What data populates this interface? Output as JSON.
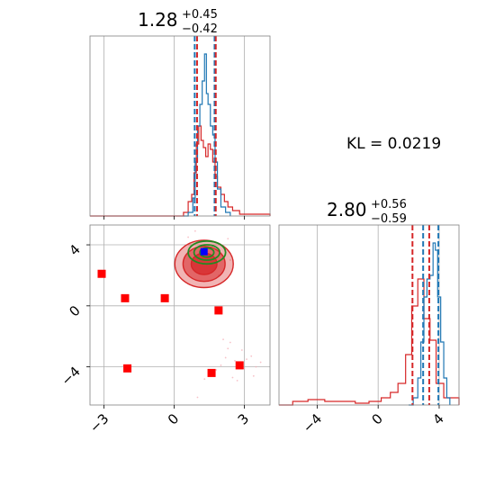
{
  "chart_data": {
    "type": "corner",
    "colors": {
      "hist1": "#1f77b4",
      "hist2": "#d62728",
      "scatter": "#ff0000",
      "marker": "#0000ff",
      "contour_green": "#228b22",
      "grid": "#b0b0b0"
    },
    "annotation": "KL = 0.0219",
    "param1": {
      "title_main": "1.28",
      "title_sup": "+0.45",
      "title_sub": "−0.42",
      "range": [
        -3.6,
        4.1
      ],
      "ticks": [
        -3,
        0,
        3
      ],
      "tick_labels": [
        "−3",
        "0",
        "3"
      ],
      "quantiles_blue": [
        0.88,
        1.73
      ],
      "quantiles_red": [
        0.98,
        1.78
      ],
      "hist_blue": [
        [
          0.4,
          0
        ],
        [
          0.6,
          0.02
        ],
        [
          0.8,
          0.1
        ],
        [
          0.9,
          0.3
        ],
        [
          1.0,
          0.5
        ],
        [
          1.1,
          0.62
        ],
        [
          1.2,
          0.75
        ],
        [
          1.3,
          0.9
        ],
        [
          1.38,
          0.68
        ],
        [
          1.45,
          0.62
        ],
        [
          1.55,
          0.5
        ],
        [
          1.65,
          0.45
        ],
        [
          1.75,
          0.3
        ],
        [
          1.85,
          0.15
        ],
        [
          2.0,
          0.05
        ],
        [
          2.2,
          0.02
        ],
        [
          2.4,
          0
        ]
      ],
      "hist_red": [
        [
          -3.6,
          0
        ],
        [
          0.2,
          0
        ],
        [
          0.4,
          0.02
        ],
        [
          0.6,
          0.08
        ],
        [
          0.75,
          0.12
        ],
        [
          0.85,
          0.24
        ],
        [
          0.95,
          0.4
        ],
        [
          1.05,
          0.5
        ],
        [
          1.15,
          0.42
        ],
        [
          1.25,
          0.38
        ],
        [
          1.35,
          0.33
        ],
        [
          1.45,
          0.4
        ],
        [
          1.55,
          0.37
        ],
        [
          1.65,
          0.3
        ],
        [
          1.75,
          0.22
        ],
        [
          1.85,
          0.16
        ],
        [
          2.0,
          0.12
        ],
        [
          2.15,
          0.08
        ],
        [
          2.3,
          0.05
        ],
        [
          2.5,
          0.03
        ],
        [
          2.8,
          0.01
        ],
        [
          3.2,
          0.01
        ],
        [
          3.6,
          0.01
        ],
        [
          4.1,
          0
        ]
      ]
    },
    "param2": {
      "title_main": "2.80",
      "title_sup": "+0.56",
      "title_sub": "−0.59",
      "range": [
        -6.5,
        5.3
      ],
      "ticks": [
        -4,
        0,
        4
      ],
      "tick_labels": [
        "−4",
        "0",
        "4"
      ],
      "quantiles_blue": [
        2.95,
        3.95
      ],
      "quantiles_red": [
        2.25,
        3.35
      ],
      "hist_blue": [
        [
          2.0,
          0
        ],
        [
          2.3,
          0.04
        ],
        [
          2.6,
          0.15
        ],
        [
          2.8,
          0.35
        ],
        [
          3.0,
          0.6
        ],
        [
          3.2,
          0.7
        ],
        [
          3.4,
          0.72
        ],
        [
          3.6,
          0.9
        ],
        [
          3.75,
          0.86
        ],
        [
          3.9,
          0.6
        ],
        [
          4.1,
          0.35
        ],
        [
          4.3,
          0.15
        ],
        [
          4.5,
          0.04
        ],
        [
          4.7,
          0
        ]
      ],
      "hist_red": [
        [
          -6.5,
          0
        ],
        [
          -5.6,
          0.02
        ],
        [
          -4.6,
          0.03
        ],
        [
          -3.5,
          0.02
        ],
        [
          -2.5,
          0.02
        ],
        [
          -1.5,
          0.01
        ],
        [
          -0.6,
          0.02
        ],
        [
          0.2,
          0.04
        ],
        [
          0.8,
          0.07
        ],
        [
          1.3,
          0.12
        ],
        [
          1.8,
          0.28
        ],
        [
          2.2,
          0.55
        ],
        [
          2.6,
          0.7
        ],
        [
          3.0,
          0.48
        ],
        [
          3.4,
          0.36
        ],
        [
          3.8,
          0.12
        ],
        [
          4.3,
          0.04
        ],
        [
          5.3,
          0
        ]
      ]
    },
    "scatter_red_squares": [
      [
        -3.1,
        2.1
      ],
      [
        -2.1,
        0.5
      ],
      [
        -2.0,
        -4.1
      ],
      [
        -0.4,
        0.5
      ],
      [
        1.9,
        -0.3
      ],
      [
        1.6,
        -4.4
      ],
      [
        2.8,
        -3.9
      ]
    ],
    "blue_marker": [
      1.28,
      3.55
    ],
    "contours_red": {
      "center": [
        1.28,
        2.75
      ],
      "radii": [
        [
          1.25,
          1.55
        ],
        [
          0.9,
          1.15
        ],
        [
          0.55,
          0.7
        ]
      ]
    },
    "contours_green": {
      "center": [
        1.4,
        3.5
      ],
      "radii": [
        [
          0.8,
          0.75
        ],
        [
          0.55,
          0.5
        ],
        [
          0.3,
          0.3
        ]
      ]
    },
    "faint_points": [
      [
        2.3,
        -2.8
      ],
      [
        2.6,
        -3.6
      ],
      [
        3.0,
        -4.1
      ],
      [
        2.2,
        -3.4
      ],
      [
        3.3,
        -3.3
      ],
      [
        2.5,
        -4.7
      ],
      [
        1.8,
        -4.2
      ],
      [
        2.9,
        -2.9
      ],
      [
        3.4,
        -4.6
      ],
      [
        3.1,
        -3.5
      ],
      [
        2.0,
        -3.9
      ],
      [
        2.7,
        -4.9
      ],
      [
        1.3,
        -4.8
      ],
      [
        1.0,
        -6.0
      ],
      [
        2.4,
        -2.4
      ],
      [
        3.7,
        -3.7
      ],
      [
        3.5,
        -4.0
      ],
      [
        2.1,
        -2.2
      ],
      [
        0.8,
        1.3
      ],
      [
        0.6,
        4.5
      ],
      [
        2.3,
        4.4
      ],
      [
        1.9,
        2.0
      ],
      [
        0.9,
        4.9
      ],
      [
        2.4,
        3.0
      ]
    ]
  }
}
